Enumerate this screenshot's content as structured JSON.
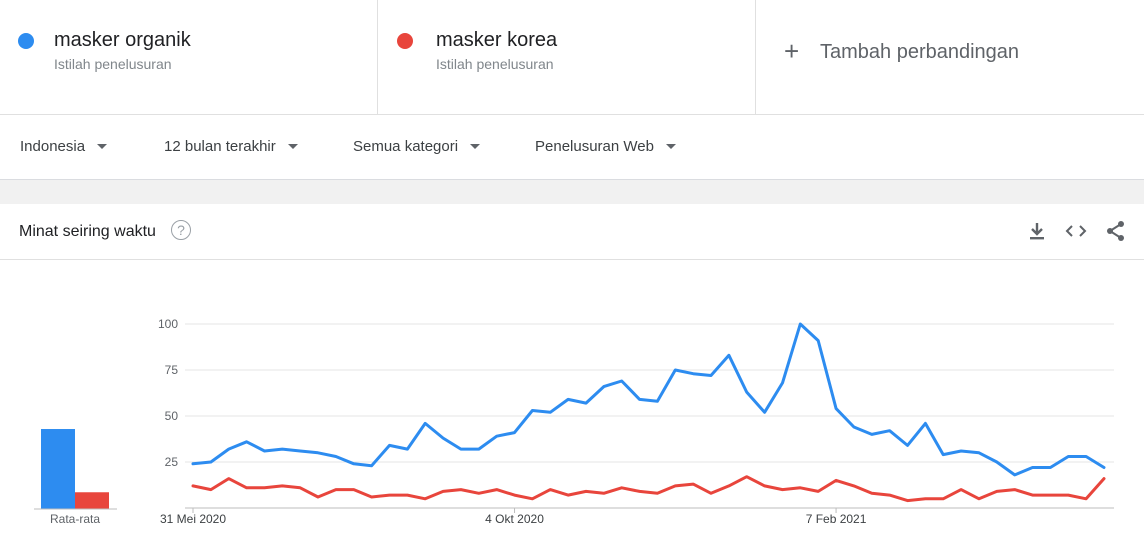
{
  "terms": [
    {
      "name": "masker organik",
      "sub": "Istilah penelusuran",
      "color": "#2d8cf0"
    },
    {
      "name": "masker korea",
      "sub": "Istilah penelusuran",
      "color": "#e8453c"
    }
  ],
  "add_comparison": {
    "label": "Tambah perbandingan",
    "icon": "plus-icon"
  },
  "filters": [
    {
      "label": "Indonesia"
    },
    {
      "label": "12 bulan terakhir"
    },
    {
      "label": "Semua kategori"
    },
    {
      "label": "Penelusuran Web"
    }
  ],
  "card": {
    "title": "Minat seiring waktu",
    "icons": [
      "help-icon",
      "download-icon",
      "embed-code-icon",
      "share-icon"
    ]
  },
  "chart_data": {
    "type": "line",
    "ylim": [
      0,
      100
    ],
    "yticks": [
      25,
      50,
      75,
      100
    ],
    "grid": true,
    "x_tick_labels": [
      {
        "index": 0,
        "label": "31 Mei 2020"
      },
      {
        "index": 18,
        "label": "4 Okt 2020"
      },
      {
        "index": 36,
        "label": "7 Feb 2021"
      }
    ],
    "series": [
      {
        "name": "masker organik",
        "color": "#2d8cf0",
        "values": [
          24,
          25,
          32,
          36,
          31,
          32,
          31,
          30,
          28,
          24,
          23,
          34,
          32,
          46,
          38,
          32,
          32,
          39,
          41,
          53,
          52,
          59,
          57,
          66,
          69,
          59,
          58,
          75,
          73,
          72,
          83,
          63,
          52,
          68,
          100,
          91,
          54,
          44,
          40,
          42,
          34,
          46,
          29,
          31,
          30,
          25,
          18,
          22,
          22,
          28,
          28,
          22
        ]
      },
      {
        "name": "masker korea",
        "color": "#e8453c",
        "values": [
          12,
          10,
          16,
          11,
          11,
          12,
          11,
          6,
          10,
          10,
          6,
          7,
          7,
          5,
          9,
          10,
          8,
          10,
          7,
          5,
          10,
          7,
          9,
          8,
          11,
          9,
          8,
          12,
          13,
          8,
          12,
          17,
          12,
          10,
          11,
          9,
          15,
          12,
          8,
          7,
          4,
          5,
          5,
          10,
          5,
          9,
          10,
          7,
          7,
          7,
          5,
          16
        ]
      }
    ],
    "average": {
      "label": "Rata-rata",
      "values": [
        43,
        9
      ]
    }
  }
}
